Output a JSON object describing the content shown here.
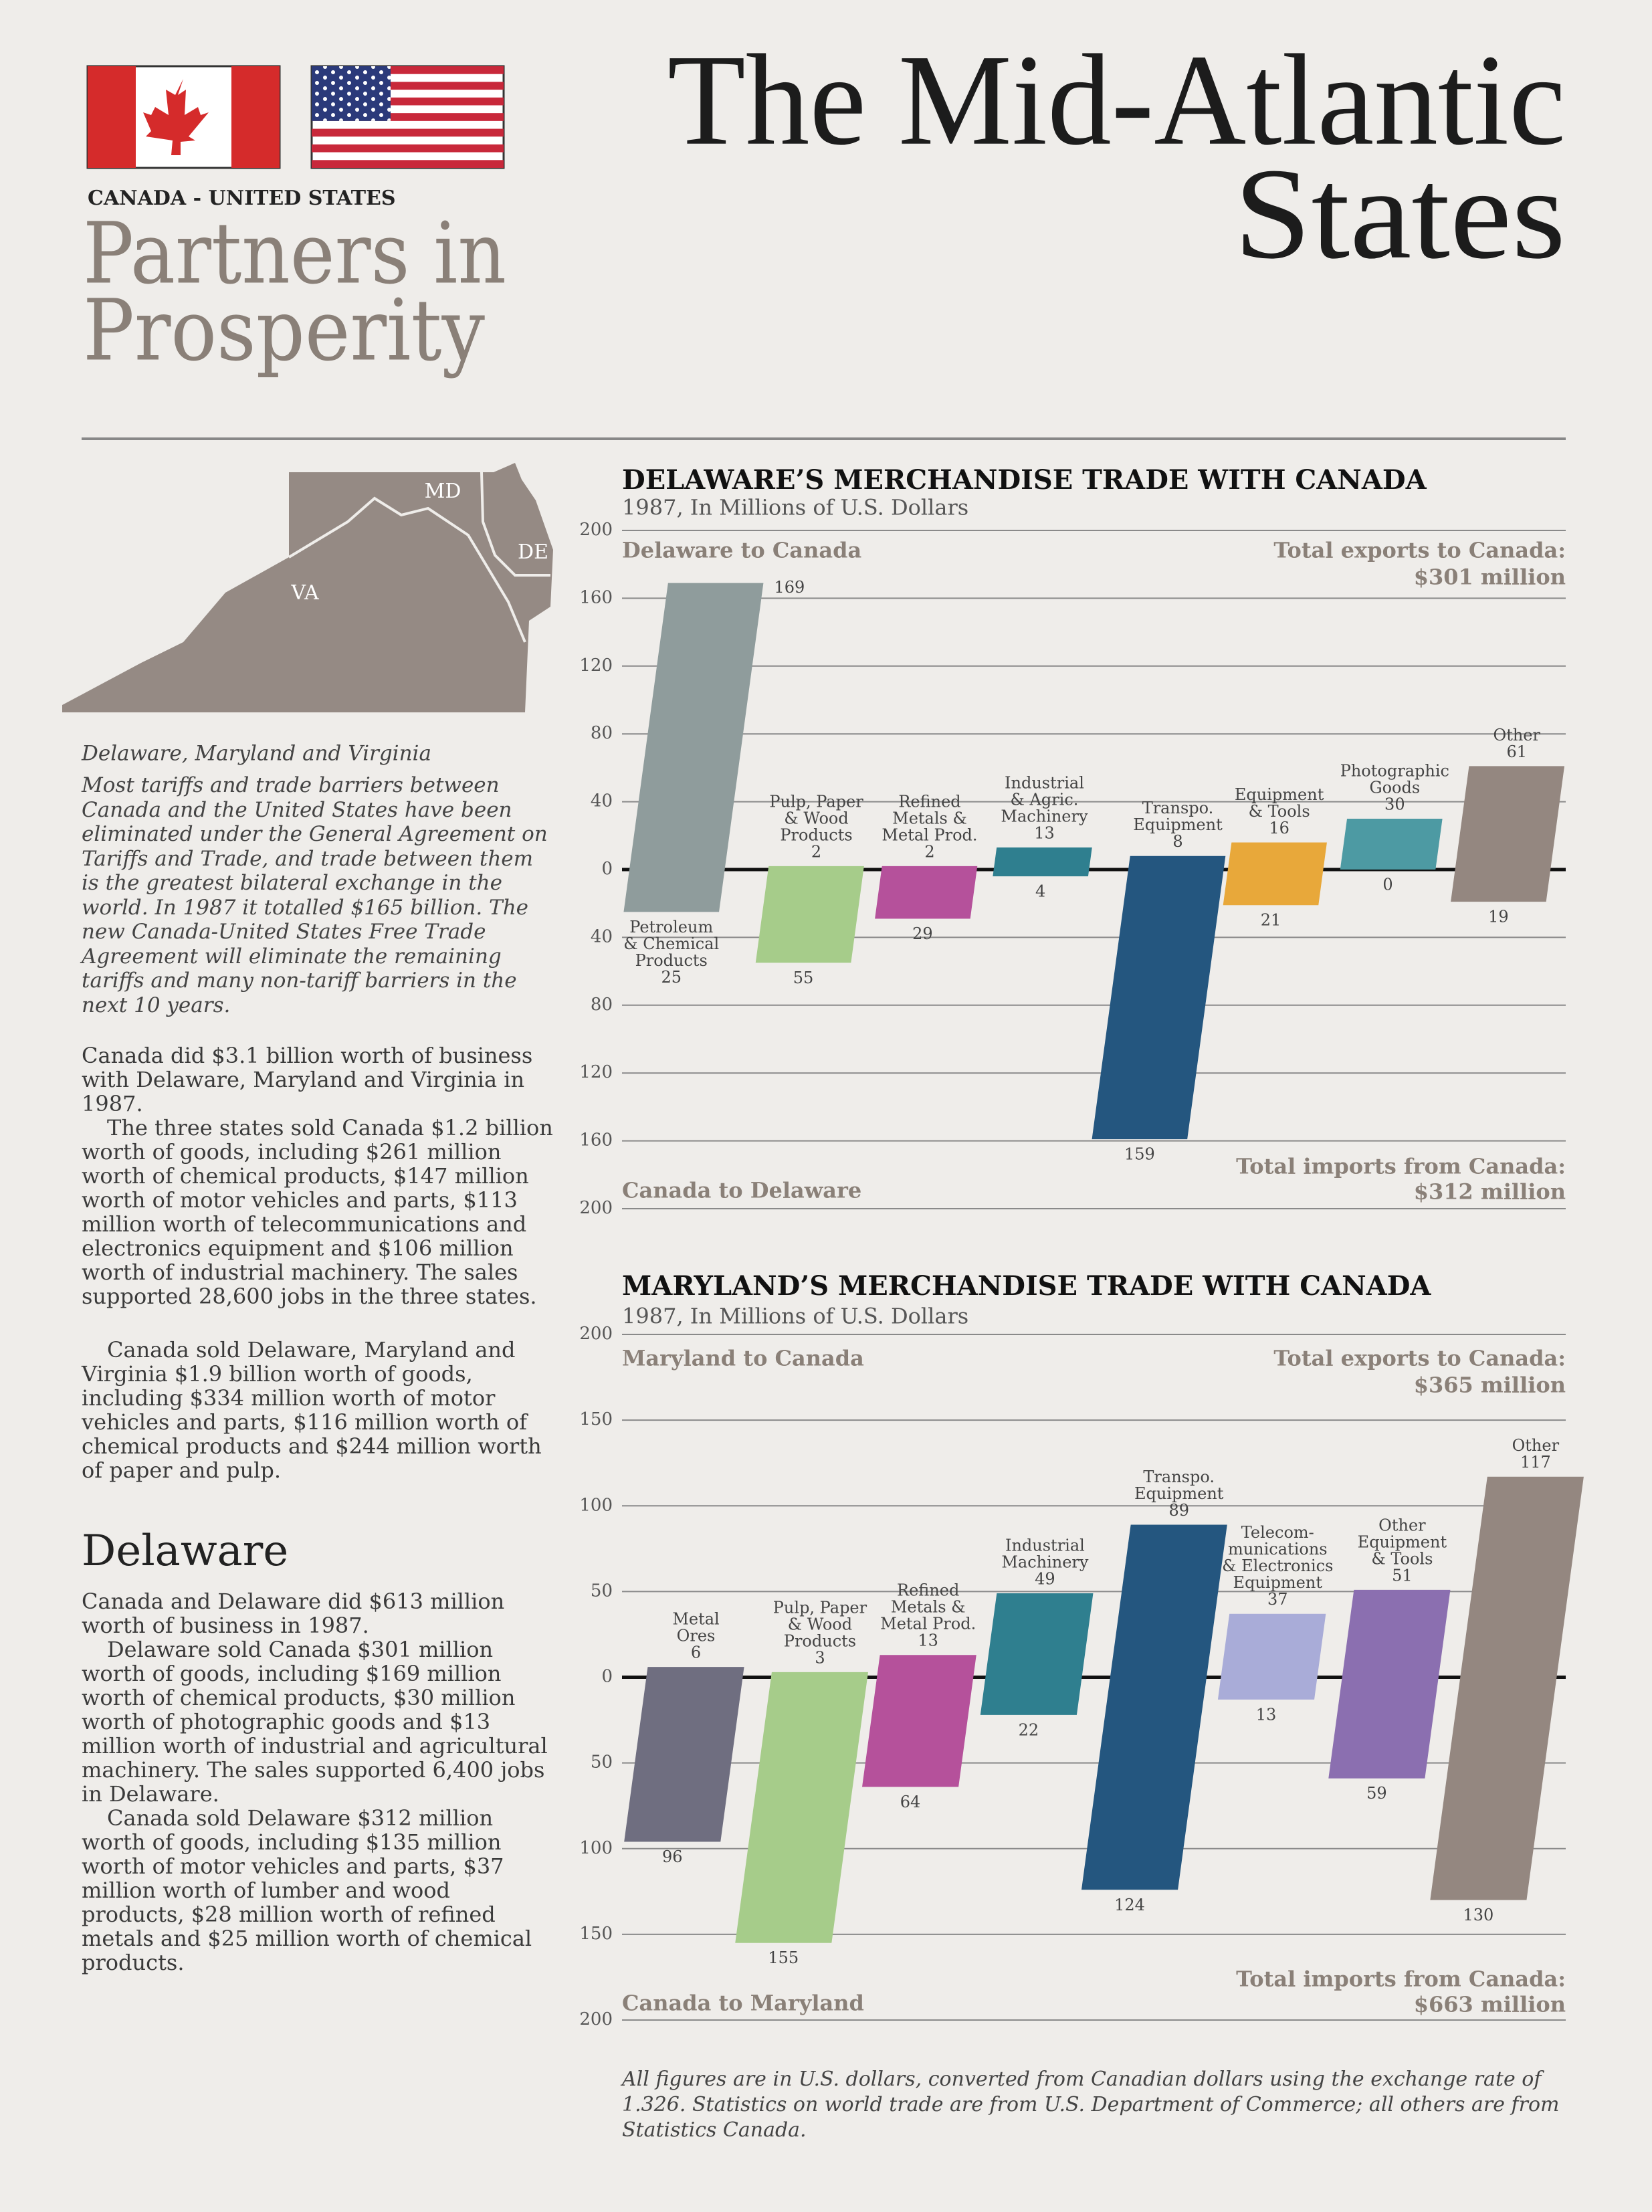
{
  "header": {
    "flag_caption": "CANADA - UNITED STATES",
    "subtitle_lines": [
      "Partners in",
      "Prosperity"
    ],
    "title_lines": [
      "The Mid-Atlantic",
      "States"
    ]
  },
  "map": {
    "labels": [
      "MD",
      "DE",
      "VA"
    ],
    "caption": "Delaware, Maryland and Virginia"
  },
  "intro": "Most tariffs and trade barriers between Canada and the United States have been eliminated under the General Agreement on Tariffs and Trade, and trade between them is the greatest bilateral exchange in the world. In 1987 it totalled $165 billion. The new Canada-United States Free Trade Agreement will eliminate the remaining tariffs and many non-tariff barriers in the next 10 years.",
  "body": [
    "Canada did $3.1 billion worth of business with Delaware, Maryland and Virginia in 1987.",
    "The three states sold Canada $1.2 billion worth of goods, including $261 million worth of chemical products, $147 million worth of motor vehicles and parts, $113 million worth of telecommunications and electronics equipment and $106 million worth of industrial machinery. The sales supported 28,600 jobs in the three states.",
    "Canada sold Delaware, Maryland and Virginia $1.9 billion worth of goods, including $334 million worth of motor vehicles and parts, $116 million worth of chemical products and $244 million worth of paper and pulp."
  ],
  "section": {
    "heading": "Delaware",
    "paragraphs": [
      "Canada and Delaware did $613 million worth of business in 1987.",
      "Delaware sold Canada $301 million worth of goods, including $169 million worth of chemical products, $30 million worth of photographic goods and $13 million worth of industrial and agricultural machinery. The sales supported 6,400 jobs in Delaware.",
      "Canada sold Delaware $312 million worth of goods, including $135 million worth of motor vehicles and parts, $37 million worth of lumber and wood products, $28 million worth of refined metals and $25 million worth of chemical products."
    ]
  },
  "chart_data": [
    {
      "type": "diverging-bar",
      "title": "DELAWARE’S MERCHANDISE TRADE WITH CANADA",
      "subtitle": "1987, In Millions of U.S. Dollars",
      "categories": [
        [
          "Petroleum",
          "& Chemical",
          "Products"
        ],
        [
          "Pulp, Paper",
          "& Wood",
          "Products"
        ],
        [
          "Refined",
          "Metals &",
          "Metal Prod."
        ],
        [
          "Industrial",
          "& Agric.",
          "Machinery"
        ],
        [
          "Transpo.",
          "Equipment"
        ],
        [
          "Equipment",
          "& Tools"
        ],
        [
          "Photographic",
          "Goods"
        ],
        [
          "Other"
        ]
      ],
      "colors": [
        "#8f9c9c",
        "#a6cc8a",
        "#b5519b",
        "#2f7f8f",
        "#24567f",
        "#e8a83a",
        "#4d9aa3",
        "#948780"
      ],
      "series": [
        {
          "name": "Delaware to Canada",
          "values": [
            169,
            2,
            2,
            13,
            8,
            16,
            30,
            61
          ]
        },
        {
          "name": "Canada to Delaware",
          "values": [
            -25,
            -55,
            -29,
            -4,
            -159,
            -21,
            0,
            -19
          ],
          "value_labels": [
            "25",
            "55",
            "29",
            "4",
            "159",
            "21",
            "0",
            "19"
          ]
        }
      ],
      "totals": [
        {
          "label": "Total exports to Canada:",
          "value": "$301 million"
        },
        {
          "label": "Total imports from Canada:",
          "value": "$312 million"
        }
      ],
      "ylim": [
        -200,
        200
      ],
      "yticks": [
        200,
        160,
        120,
        80,
        40,
        0,
        {
          "value": -40,
          "label": "40"
        },
        {
          "value": -80,
          "label": "80"
        },
        {
          "value": -120,
          "label": "120"
        },
        {
          "value": -160,
          "label": "160"
        },
        {
          "value": -200,
          "label": "200"
        }
      ],
      "grid": true
    },
    {
      "type": "diverging-bar",
      "title": "MARYLAND’S MERCHANDISE TRADE WITH CANADA",
      "subtitle": "1987, In Millions of U.S. Dollars",
      "categories": [
        [
          "Metal",
          "Ores"
        ],
        [
          "Pulp, Paper",
          "& Wood",
          "Products"
        ],
        [
          "Refined",
          "Metals &",
          "Metal Prod."
        ],
        [
          "Industrial",
          "Machinery"
        ],
        [
          "Transpo.",
          "Equipment"
        ],
        [
          "Telecom-",
          "munications",
          "& Electronics",
          "Equipment"
        ],
        [
          "Other",
          "Equipment",
          "& Tools"
        ],
        [
          "Other"
        ]
      ],
      "colors": [
        "#6f6e80",
        "#a6cc8a",
        "#b5519b",
        "#2f7f8f",
        "#24567f",
        "#a9acd8",
        "#8b6fb0",
        "#948780"
      ],
      "series": [
        {
          "name": "Maryland to Canada",
          "values": [
            6,
            3,
            13,
            49,
            89,
            37,
            51,
            117
          ]
        },
        {
          "name": "Canada to Maryland",
          "values": [
            -96,
            -155,
            -64,
            -22,
            -124,
            -13,
            -59,
            -130
          ],
          "value_labels": [
            "96",
            "155",
            "64",
            "22",
            "124",
            "13",
            "59",
            "130"
          ]
        }
      ],
      "totals": [
        {
          "label": "Total exports to Canada:",
          "value": "$365 million"
        },
        {
          "label": "Total imports from Canada:",
          "value": "$663 million"
        }
      ],
      "ylim": [
        -200,
        200
      ],
      "yticks": [
        200,
        150,
        100,
        50,
        0,
        {
          "value": -50,
          "label": "50"
        },
        {
          "value": -100,
          "label": "100"
        },
        {
          "value": -150,
          "label": "150"
        },
        {
          "value": -200,
          "label": "200"
        }
      ],
      "grid": true
    }
  ],
  "footnote": "All figures are in U.S. dollars, converted from Canadian dollars using the exchange rate of 1.326. Statistics on world trade are from U.S. Department of Commerce; all others are from Statistics Canada."
}
